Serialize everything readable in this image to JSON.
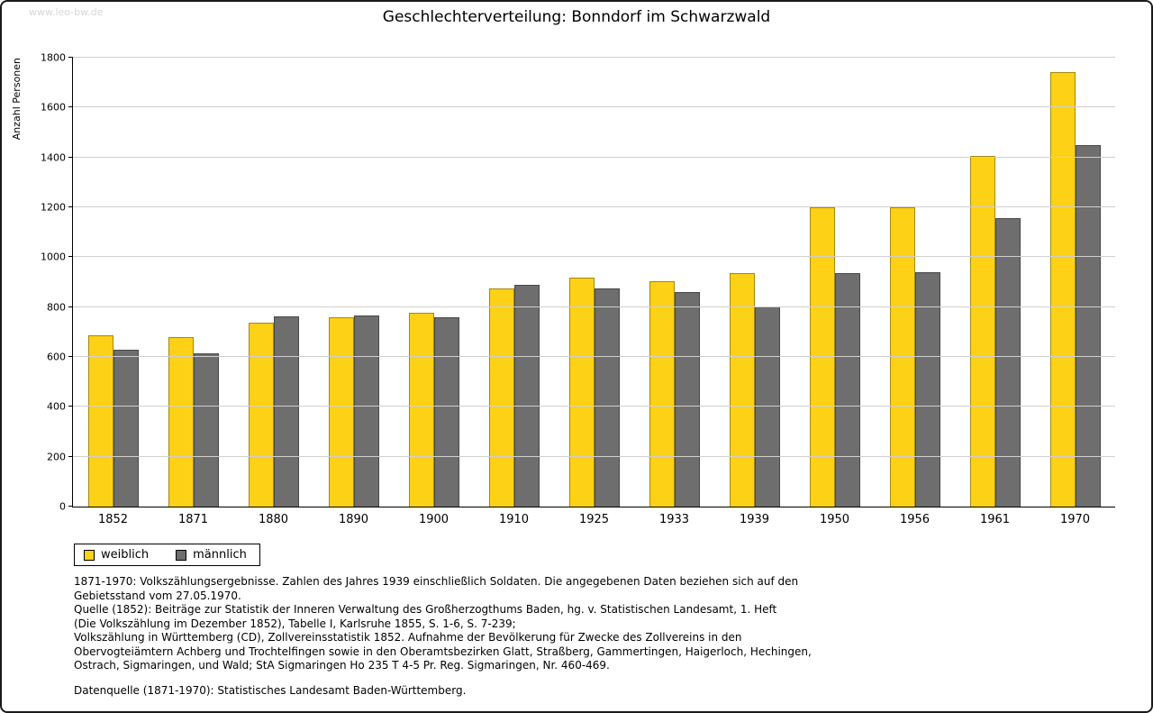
{
  "watermark": "www.leo-bw.de",
  "chart_data": {
    "type": "bar",
    "title": "Geschlechterverteilung: Bonndorf im Schwarzwald",
    "xlabel": "",
    "ylabel": "Anzahl Personen",
    "ylim": [
      0,
      1800
    ],
    "ytick_step": 200,
    "grid": true,
    "legend_position": "bottom-left",
    "categories": [
      "1852",
      "1871",
      "1880",
      "1890",
      "1900",
      "1910",
      "1925",
      "1933",
      "1939",
      "1950",
      "1956",
      "1961",
      "1970"
    ],
    "series": [
      {
        "name": "weiblich",
        "color": "#FCD116",
        "values": [
          685,
          679,
          738,
          760,
          778,
          874,
          917,
          903,
          938,
          1200,
          1201,
          1406,
          1744
        ]
      },
      {
        "name": "männlich",
        "color": "#6E6E6E",
        "values": [
          628,
          616,
          763,
          767,
          760,
          889,
          875,
          861,
          801,
          937,
          941,
          1156,
          1450
        ]
      }
    ]
  },
  "footnotes": {
    "lines": [
      "1871-1970: Volkszählungsergebnisse. Zahlen des Jahres 1939 einschließlich Soldaten. Die angegebenen Daten beziehen sich auf den",
      "Gebietsstand vom 27.05.1970.",
      "Quelle (1852): Beiträge zur Statistik der Inneren Verwaltung des Großherzogthums Baden, hg. v. Statistischen Landesamt, 1. Heft",
      "(Die Volkszählung im Dezember 1852), Tabelle I, Karlsruhe 1855, S. 1-6, S. 7-239;",
      "Volkszählung in Württemberg (CD), Zollvereinsstatistik 1852. Aufnahme der Bevölkerung für Zwecke des Zollvereins in den",
      "Obervogteiämtern Achberg und Trochtelfingen sowie in den Oberamtsbezirken Glatt, Straßberg, Gammertingen, Haigerloch, Hechingen,",
      "Ostrach, Sigmaringen, und Wald; StA Sigmaringen Ho 235 T 4-5 Pr. Reg. Sigmaringen, Nr. 460-469.",
      "",
      "Datenquelle (1871-1970): Statistisches Landesamt Baden-Württemberg."
    ]
  }
}
